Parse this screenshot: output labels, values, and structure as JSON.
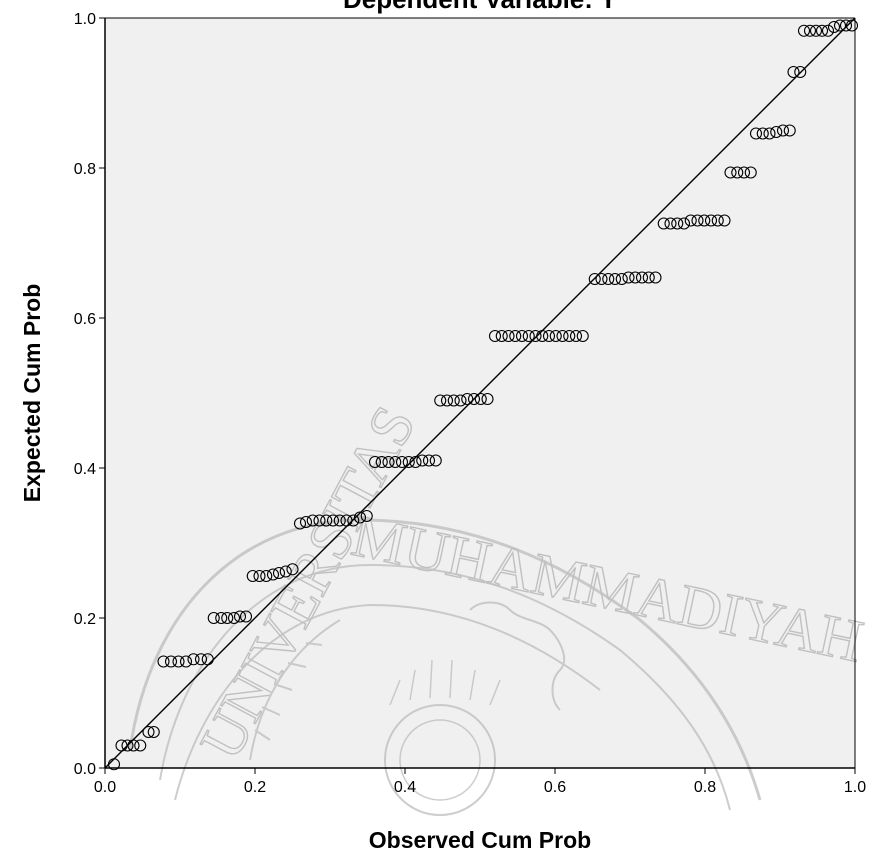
{
  "chart_data": {
    "type": "scatter",
    "title": "Dependent Variable: Y",
    "xlabel": "Observed Cum Prob",
    "ylabel": "Expected Cum Prob",
    "xlim": [
      0.0,
      1.0
    ],
    "ylim": [
      0.0,
      1.0
    ],
    "x_ticks": [
      "0.0",
      "0.2",
      "0.4",
      "0.6",
      "0.8",
      "1.0"
    ],
    "y_ticks": [
      "0.0",
      "0.2",
      "0.4",
      "0.6",
      "0.8",
      "1.0"
    ],
    "grid": false,
    "reference_line": {
      "from": [
        0,
        0
      ],
      "to": [
        1,
        1
      ]
    },
    "plot_background": "#f0f0f0",
    "marker_color": "#000000",
    "points": [
      [
        0.012,
        0.005
      ],
      [
        0.022,
        0.03
      ],
      [
        0.03,
        0.03
      ],
      [
        0.038,
        0.03
      ],
      [
        0.047,
        0.03
      ],
      [
        0.058,
        0.048
      ],
      [
        0.065,
        0.048
      ],
      [
        0.078,
        0.142
      ],
      [
        0.088,
        0.142
      ],
      [
        0.098,
        0.142
      ],
      [
        0.108,
        0.142
      ],
      [
        0.118,
        0.145
      ],
      [
        0.128,
        0.145
      ],
      [
        0.137,
        0.145
      ],
      [
        0.145,
        0.2
      ],
      [
        0.155,
        0.2
      ],
      [
        0.163,
        0.2
      ],
      [
        0.172,
        0.2
      ],
      [
        0.18,
        0.202
      ],
      [
        0.188,
        0.202
      ],
      [
        0.197,
        0.256
      ],
      [
        0.206,
        0.256
      ],
      [
        0.215,
        0.256
      ],
      [
        0.224,
        0.258
      ],
      [
        0.232,
        0.26
      ],
      [
        0.241,
        0.262
      ],
      [
        0.25,
        0.265
      ],
      [
        0.26,
        0.326
      ],
      [
        0.268,
        0.328
      ],
      [
        0.277,
        0.33
      ],
      [
        0.286,
        0.33
      ],
      [
        0.295,
        0.33
      ],
      [
        0.304,
        0.33
      ],
      [
        0.313,
        0.33
      ],
      [
        0.322,
        0.33
      ],
      [
        0.331,
        0.33
      ],
      [
        0.34,
        0.334
      ],
      [
        0.349,
        0.336
      ],
      [
        0.36,
        0.408
      ],
      [
        0.369,
        0.408
      ],
      [
        0.378,
        0.408
      ],
      [
        0.387,
        0.408
      ],
      [
        0.396,
        0.408
      ],
      [
        0.405,
        0.408
      ],
      [
        0.414,
        0.408
      ],
      [
        0.423,
        0.41
      ],
      [
        0.432,
        0.41
      ],
      [
        0.441,
        0.41
      ],
      [
        0.447,
        0.49
      ],
      [
        0.456,
        0.49
      ],
      [
        0.465,
        0.49
      ],
      [
        0.474,
        0.49
      ],
      [
        0.483,
        0.492
      ],
      [
        0.492,
        0.492
      ],
      [
        0.501,
        0.492
      ],
      [
        0.51,
        0.492
      ],
      [
        0.52,
        0.576
      ],
      [
        0.529,
        0.576
      ],
      [
        0.538,
        0.576
      ],
      [
        0.547,
        0.576
      ],
      [
        0.556,
        0.576
      ],
      [
        0.565,
        0.576
      ],
      [
        0.574,
        0.576
      ],
      [
        0.583,
        0.576
      ],
      [
        0.592,
        0.576
      ],
      [
        0.601,
        0.576
      ],
      [
        0.61,
        0.576
      ],
      [
        0.619,
        0.576
      ],
      [
        0.628,
        0.576
      ],
      [
        0.637,
        0.576
      ],
      [
        0.653,
        0.652
      ],
      [
        0.662,
        0.652
      ],
      [
        0.671,
        0.652
      ],
      [
        0.68,
        0.652
      ],
      [
        0.689,
        0.652
      ],
      [
        0.698,
        0.654
      ],
      [
        0.707,
        0.654
      ],
      [
        0.716,
        0.654
      ],
      [
        0.725,
        0.654
      ],
      [
        0.734,
        0.654
      ],
      [
        0.745,
        0.726
      ],
      [
        0.754,
        0.726
      ],
      [
        0.763,
        0.726
      ],
      [
        0.772,
        0.726
      ],
      [
        0.781,
        0.73
      ],
      [
        0.79,
        0.73
      ],
      [
        0.799,
        0.73
      ],
      [
        0.808,
        0.73
      ],
      [
        0.817,
        0.73
      ],
      [
        0.826,
        0.73
      ],
      [
        0.834,
        0.794
      ],
      [
        0.843,
        0.794
      ],
      [
        0.852,
        0.794
      ],
      [
        0.861,
        0.794
      ],
      [
        0.868,
        0.846
      ],
      [
        0.877,
        0.846
      ],
      [
        0.886,
        0.846
      ],
      [
        0.895,
        0.848
      ],
      [
        0.904,
        0.85
      ],
      [
        0.913,
        0.85
      ],
      [
        0.918,
        0.928
      ],
      [
        0.927,
        0.928
      ],
      [
        0.932,
        0.983
      ],
      [
        0.94,
        0.983
      ],
      [
        0.948,
        0.983
      ],
      [
        0.956,
        0.983
      ],
      [
        0.964,
        0.983
      ],
      [
        0.972,
        0.988
      ],
      [
        0.98,
        0.99
      ],
      [
        0.988,
        0.99
      ],
      [
        0.996,
        0.99
      ]
    ]
  }
}
